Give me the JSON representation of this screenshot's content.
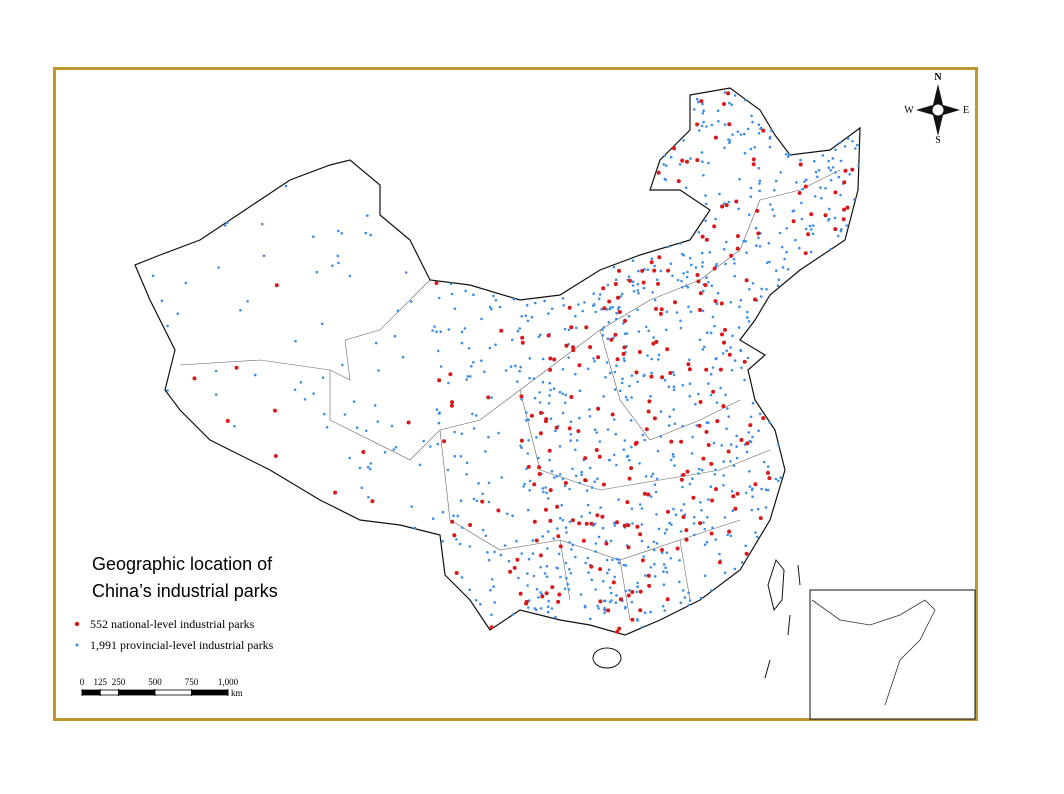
{
  "title_lines": [
    "Geographic location of",
    "China’s industrial parks"
  ],
  "legend": [
    {
      "label": "552 national-level industrial parks",
      "color": "#d7191c"
    },
    {
      "label": "1,991 provincial-level industrial parks",
      "color": "#3a8ee6"
    }
  ],
  "scale_bar": {
    "ticks": [
      0,
      125,
      250,
      500,
      750,
      {
        "value": 1000,
        "label": "1,000"
      }
    ],
    "unit": "km"
  },
  "compass": {
    "north": "N",
    "south": "S",
    "west": "W",
    "east": "E"
  }
}
